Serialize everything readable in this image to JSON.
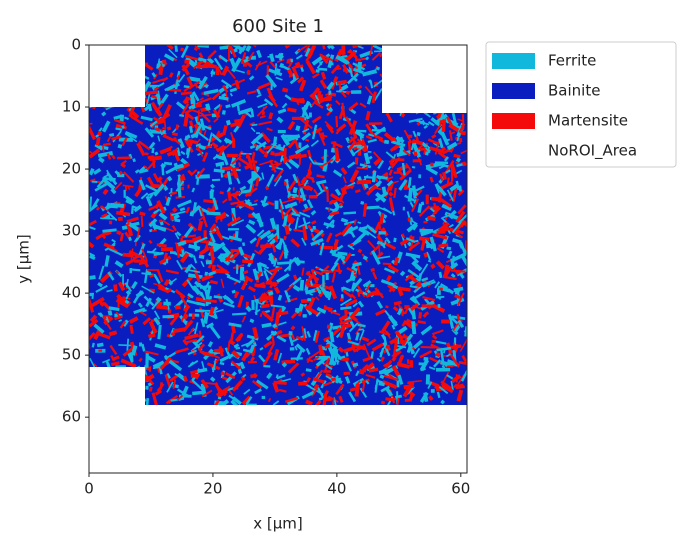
{
  "chart_data": {
    "type": "image",
    "title": "600 Site 1",
    "x_label": "x [μm]",
    "y_label": "y [μm]",
    "xlim": [
      0,
      61
    ],
    "ylim": [
      69,
      0
    ],
    "xticks": [
      0,
      20,
      40,
      60
    ],
    "yticks": [
      0,
      10,
      20,
      30,
      40,
      50,
      60
    ],
    "legend_position": "outside right",
    "legend": [
      {
        "name": "Ferrite",
        "color": "#12b8dc"
      },
      {
        "name": "Bainite",
        "color": "#0a1ec0"
      },
      {
        "name": "Martensite",
        "color": "#f40a0a"
      },
      {
        "name": "NoROI_Area",
        "color": "#ffffff"
      }
    ]
  }
}
